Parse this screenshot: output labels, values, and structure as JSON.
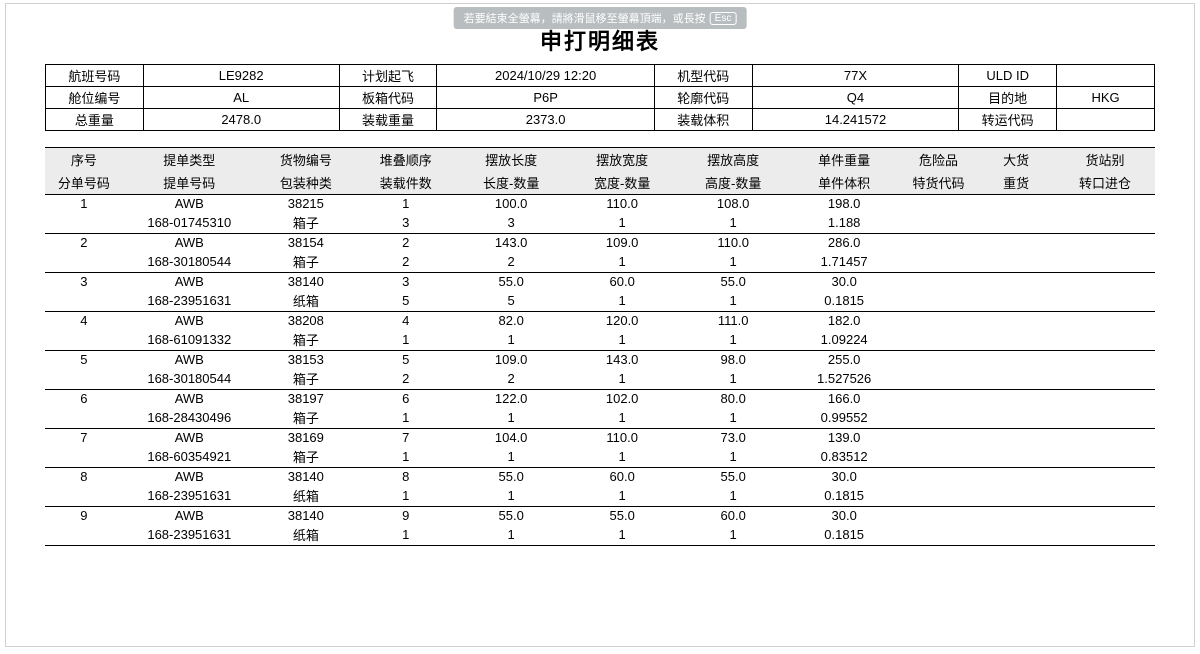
{
  "fullscreen_hint": {
    "text": "若要結束全螢幕，請將滑鼠移至螢幕頂端，或長按",
    "esc": "Esc"
  },
  "title": "申打明细表",
  "header": {
    "labels": {
      "flight_no": "航班号码",
      "plan_depart": "计划起飞",
      "ac_type": "机型代码",
      "uld_id": "ULD ID",
      "cabin_no": "舱位编号",
      "box_code": "板箱代码",
      "contour_code": "轮廓代码",
      "dest": "目的地",
      "gross_wt": "总重量",
      "load_wt": "装载重量",
      "load_vol": "装载体积",
      "transfer_code": "转运代码"
    },
    "values": {
      "flight_no": "LE9282",
      "plan_depart": "2024/10/29 12:20",
      "ac_type": "77X",
      "uld_id": "",
      "cabin_no": "AL",
      "box_code": "P6P",
      "contour_code": "Q4",
      "dest": "HKG",
      "gross_wt": "2478.0",
      "load_wt": "2373.0",
      "load_vol": "14.241572",
      "transfer_code": ""
    }
  },
  "detail": {
    "head_row1": [
      "序号",
      "提单类型",
      "货物编号",
      "堆叠顺序",
      "摆放长度",
      "摆放宽度",
      "摆放高度",
      "单件重量",
      "危险品",
      "大货",
      "货站别"
    ],
    "head_row2": [
      "分单号码",
      "提单号码",
      "包装种类",
      "装载件数",
      "长度-数量",
      "宽度-数量",
      "高度-数量",
      "单件体积",
      "特货代码",
      "重货",
      "转口进仓"
    ],
    "rows": [
      {
        "r1": [
          "1",
          "AWB",
          "38215",
          "1",
          "100.0",
          "110.0",
          "108.0",
          "198.0",
          "",
          "",
          ""
        ],
        "r2": [
          "",
          "168-01745310",
          "箱子",
          "3",
          "3",
          "1",
          "1",
          "1.188",
          "",
          "",
          ""
        ]
      },
      {
        "r1": [
          "2",
          "AWB",
          "38154",
          "2",
          "143.0",
          "109.0",
          "110.0",
          "286.0",
          "",
          "",
          ""
        ],
        "r2": [
          "",
          "168-30180544",
          "箱子",
          "2",
          "2",
          "1",
          "1",
          "1.71457",
          "",
          "",
          ""
        ]
      },
      {
        "r1": [
          "3",
          "AWB",
          "38140",
          "3",
          "55.0",
          "60.0",
          "55.0",
          "30.0",
          "",
          "",
          ""
        ],
        "r2": [
          "",
          "168-23951631",
          "纸箱",
          "5",
          "5",
          "1",
          "1",
          "0.1815",
          "",
          "",
          ""
        ]
      },
      {
        "r1": [
          "4",
          "AWB",
          "38208",
          "4",
          "82.0",
          "120.0",
          "111.0",
          "182.0",
          "",
          "",
          ""
        ],
        "r2": [
          "",
          "168-61091332",
          "箱子",
          "1",
          "1",
          "1",
          "1",
          "1.09224",
          "",
          "",
          ""
        ]
      },
      {
        "r1": [
          "5",
          "AWB",
          "38153",
          "5",
          "109.0",
          "143.0",
          "98.0",
          "255.0",
          "",
          "",
          ""
        ],
        "r2": [
          "",
          "168-30180544",
          "箱子",
          "2",
          "2",
          "1",
          "1",
          "1.527526",
          "",
          "",
          ""
        ]
      },
      {
        "r1": [
          "6",
          "AWB",
          "38197",
          "6",
          "122.0",
          "102.0",
          "80.0",
          "166.0",
          "",
          "",
          ""
        ],
        "r2": [
          "",
          "168-28430496",
          "箱子",
          "1",
          "1",
          "1",
          "1",
          "0.99552",
          "",
          "",
          ""
        ]
      },
      {
        "r1": [
          "7",
          "AWB",
          "38169",
          "7",
          "104.0",
          "110.0",
          "73.0",
          "139.0",
          "",
          "",
          ""
        ],
        "r2": [
          "",
          "168-60354921",
          "箱子",
          "1",
          "1",
          "1",
          "1",
          "0.83512",
          "",
          "",
          ""
        ]
      },
      {
        "r1": [
          "8",
          "AWB",
          "38140",
          "8",
          "55.0",
          "60.0",
          "55.0",
          "30.0",
          "",
          "",
          ""
        ],
        "r2": [
          "",
          "168-23951631",
          "纸箱",
          "1",
          "1",
          "1",
          "1",
          "0.1815",
          "",
          "",
          ""
        ]
      },
      {
        "r1": [
          "9",
          "AWB",
          "38140",
          "9",
          "55.0",
          "55.0",
          "60.0",
          "30.0",
          "",
          "",
          ""
        ],
        "r2": [
          "",
          "168-23951631",
          "纸箱",
          "1",
          "1",
          "1",
          "1",
          "0.1815",
          "",
          "",
          ""
        ]
      }
    ],
    "col_widths_pct": [
      7,
      12,
      9,
      9,
      10,
      10,
      10,
      10,
      7,
      7,
      9
    ]
  }
}
